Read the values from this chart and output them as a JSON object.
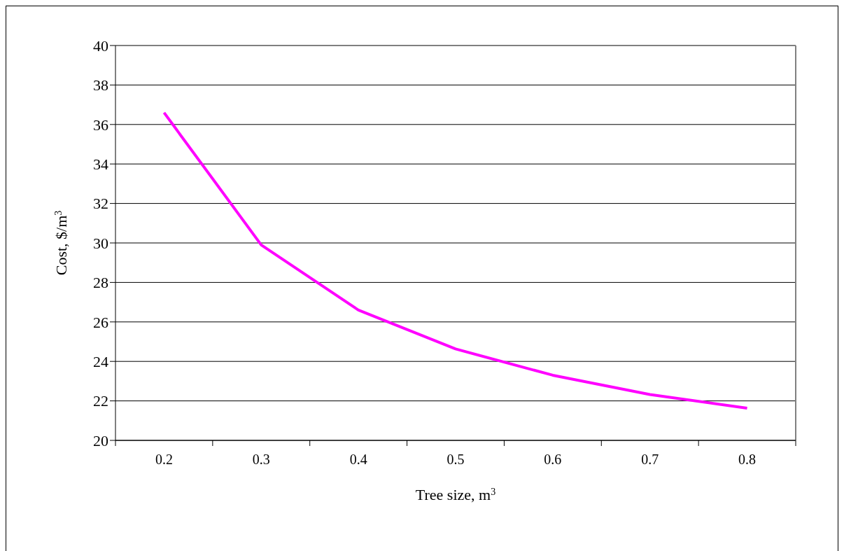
{
  "chart_data": {
    "type": "line",
    "xlabel": "Tree size, m$^{3}$",
    "ylabel": "Cost, $/m$^{3}$",
    "categories": [
      "0.2",
      "0.3",
      "0.4",
      "0.5",
      "0.6",
      "0.7",
      "0.8"
    ],
    "series": [
      {
        "color": "#ff00ff",
        "values": [
          36.6,
          29.9,
          26.6,
          24.63,
          23.3,
          22.32,
          21.63
        ]
      }
    ],
    "ylim": [
      20,
      40
    ],
    "yticks": [
      20,
      22,
      24,
      26,
      28,
      30,
      32,
      34,
      36,
      38,
      40
    ],
    "grid": "y",
    "legend": false,
    "marker": "none",
    "line_style": "solid"
  }
}
